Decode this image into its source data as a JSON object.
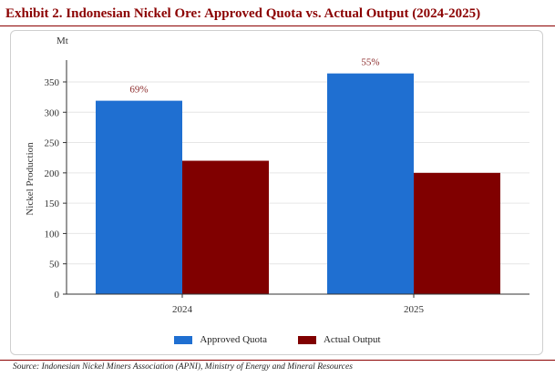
{
  "title": "Exhibit 2. Indonesian Nickel Ore: Approved Quota vs. Actual Output (2024-2025)",
  "source": "Source: Indonesian Nickel Miners Association (APNI), Ministry of Energy and Mineral Resources",
  "chart_data": {
    "type": "bar",
    "categories": [
      "2024",
      "2025"
    ],
    "series": [
      {
        "name": "Approved Quota",
        "values": [
          319,
          364
        ],
        "color": "#1f6fd1"
      },
      {
        "name": "Actual Output",
        "values": [
          220,
          200
        ],
        "color": "#800000"
      }
    ],
    "annotations": [
      "69%",
      "55%"
    ],
    "annotation_color": "#8b2a2a",
    "unit": "Mt",
    "ylabel": "Nickel Production",
    "xlabel": "",
    "ylim": [
      0,
      380
    ],
    "yticks": [
      0,
      50,
      100,
      150,
      200,
      250,
      300,
      350
    ],
    "legend_position": "bottom"
  }
}
